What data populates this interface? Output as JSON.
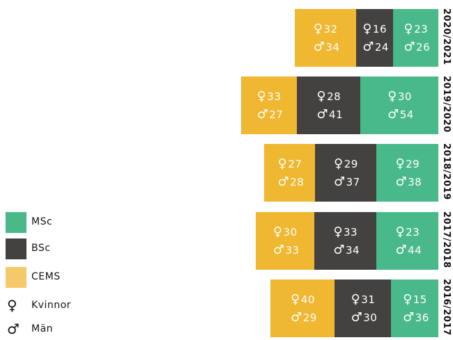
{
  "colors": {
    "MSc": "#4ab98a",
    "BSc": "#434240",
    "CEMS": "#f0b730",
    "CEMS_legend": "#f5c96a"
  },
  "legend": {
    "items": [
      {
        "key": "MSc",
        "label": "MSc",
        "icon": "swatch"
      },
      {
        "key": "BSc",
        "label": "BSc",
        "icon": "swatch"
      },
      {
        "key": "CEMS",
        "label": "CEMS",
        "icon": "swatch"
      },
      {
        "key": "kvinnor",
        "label": "Kvinnor",
        "icon": "female-icon",
        "symbol": "♀"
      },
      {
        "key": "man",
        "label": "Män",
        "icon": "male-icon",
        "symbol": "♂"
      }
    ]
  },
  "chart_data": {
    "type": "bar",
    "orientation": "horizontal",
    "stacked": true,
    "categories": [
      "2020/2021",
      "2019/2020",
      "2018/2019",
      "2017/2018",
      "2016/2017"
    ],
    "series": [
      {
        "name": "CEMS",
        "women": [
          32,
          33,
          27,
          30,
          40
        ],
        "men": [
          34,
          27,
          28,
          33,
          29
        ]
      },
      {
        "name": "BSc",
        "women": [
          16,
          28,
          29,
          33,
          31
        ],
        "men": [
          24,
          41,
          37,
          34,
          30
        ]
      },
      {
        "name": "MSc",
        "women": [
          23,
          30,
          29,
          23,
          15
        ],
        "men": [
          26,
          54,
          38,
          44,
          36
        ]
      }
    ],
    "gender_symbols": {
      "women": "♀",
      "men": "♂"
    },
    "legend_position": "bottom-left",
    "grid": false
  }
}
